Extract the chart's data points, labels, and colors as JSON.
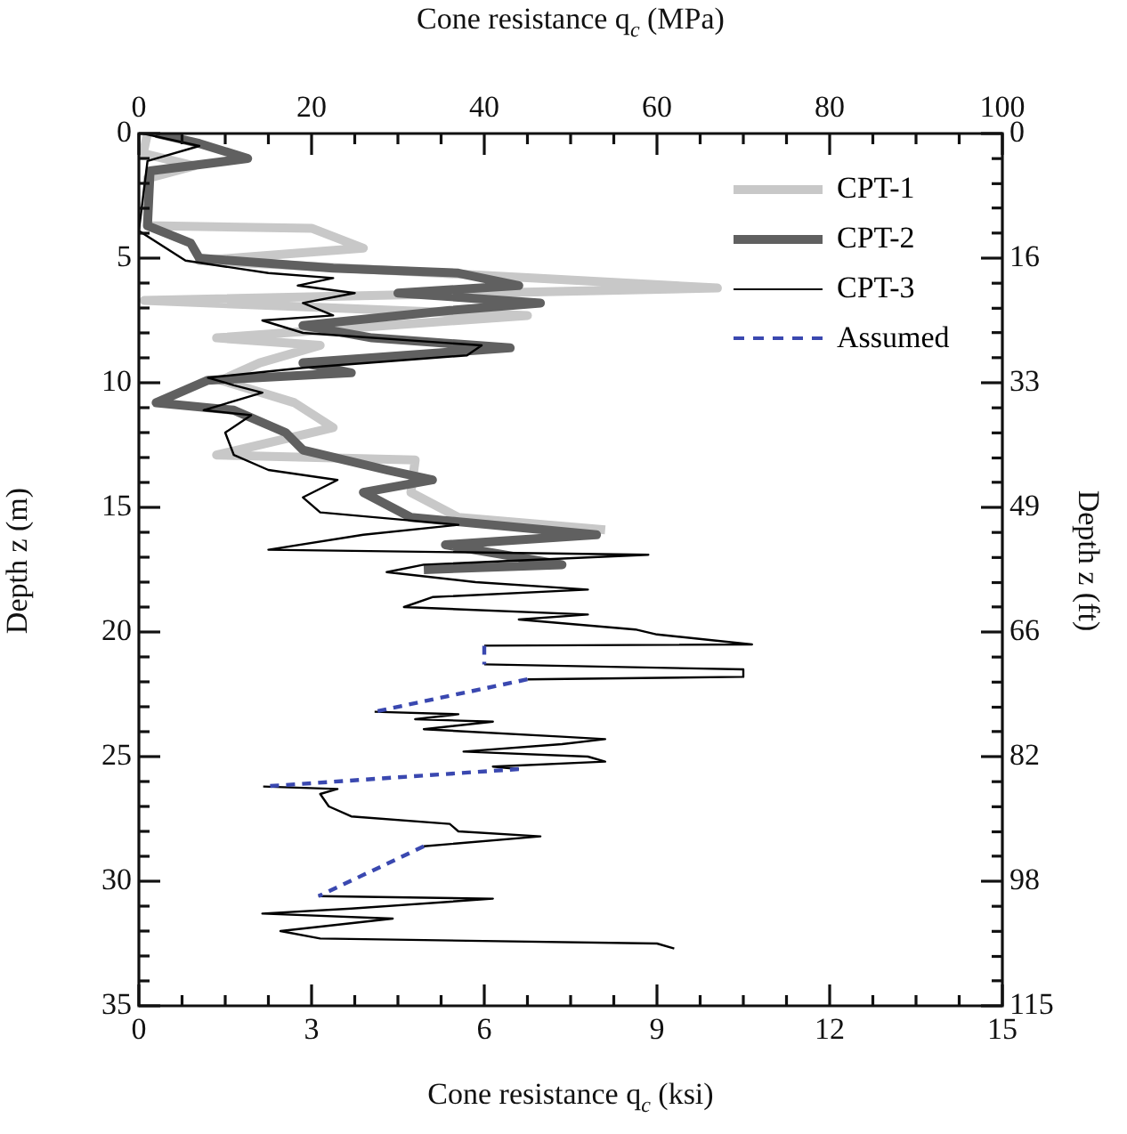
{
  "chart_data": {
    "type": "line",
    "x2label": "Cone resistance q$_{c}$ (MPa)",
    "xlabel": "Cone resistance q$_{c}$ (ksi)",
    "ylabel": "Depth z (m)",
    "y2label": "Depth z (ft)",
    "x2lim": [
      0,
      100
    ],
    "x2ticks": [
      0,
      {
        "value": 5,
        "label": null
      },
      {
        "value": 10,
        "label": null
      },
      {
        "value": 15,
        "label": null
      },
      20,
      {
        "value": 25,
        "label": null
      },
      {
        "value": 30,
        "label": null
      },
      {
        "value": 35,
        "label": null
      },
      40,
      {
        "value": 45,
        "label": null
      },
      {
        "value": 50,
        "label": null
      },
      {
        "value": 55,
        "label": null
      },
      60,
      {
        "value": 65,
        "label": null
      },
      {
        "value": 70,
        "label": null
      },
      {
        "value": 75,
        "label": null
      },
      80,
      {
        "value": 85,
        "label": null
      },
      {
        "value": 90,
        "label": null
      },
      {
        "value": 95,
        "label": null
      },
      100
    ],
    "xlim": [
      0,
      15
    ],
    "xticks": [
      0,
      {
        "value": 0.75,
        "label": null
      },
      {
        "value": 1.5,
        "label": null
      },
      {
        "value": 2.25,
        "label": null
      },
      3,
      {
        "value": 3.75,
        "label": null
      },
      {
        "value": 4.5,
        "label": null
      },
      {
        "value": 5.25,
        "label": null
      },
      6,
      {
        "value": 6.75,
        "label": null
      },
      {
        "value": 7.5,
        "label": null
      },
      {
        "value": 8.25,
        "label": null
      },
      9,
      {
        "value": 9.75,
        "label": null
      },
      {
        "value": 10.5,
        "label": null
      },
      {
        "value": 11.25,
        "label": null
      },
      12,
      {
        "value": 12.75,
        "label": null
      },
      {
        "value": 13.5,
        "label": null
      },
      {
        "value": 14.25,
        "label": null
      },
      15
    ],
    "ylim": [
      35,
      0
    ],
    "yticks": [
      0,
      {
        "value": 1,
        "label": null
      },
      {
        "value": 2,
        "label": null
      },
      {
        "value": 3,
        "label": null
      },
      {
        "value": 4,
        "label": null
      },
      5,
      {
        "value": 6,
        "label": null
      },
      {
        "value": 7,
        "label": null
      },
      {
        "value": 8,
        "label": null
      },
      {
        "value": 9,
        "label": null
      },
      10,
      {
        "value": 11,
        "label": null
      },
      {
        "value": 12,
        "label": null
      },
      {
        "value": 13,
        "label": null
      },
      {
        "value": 14,
        "label": null
      },
      15,
      {
        "value": 16,
        "label": null
      },
      {
        "value": 17,
        "label": null
      },
      {
        "value": 18,
        "label": null
      },
      {
        "value": 19,
        "label": null
      },
      20,
      {
        "value": 21,
        "label": null
      },
      {
        "value": 22,
        "label": null
      },
      {
        "value": 23,
        "label": null
      },
      {
        "value": 24,
        "label": null
      },
      25,
      {
        "value": 26,
        "label": null
      },
      {
        "value": 27,
        "label": null
      },
      {
        "value": 28,
        "label": null
      },
      {
        "value": 29,
        "label": null
      },
      30,
      {
        "value": 31,
        "label": null
      },
      {
        "value": 32,
        "label": null
      },
      {
        "value": 33,
        "label": null
      },
      {
        "value": 34,
        "label": null
      },
      35
    ],
    "y2lim": [
      114.8,
      0
    ],
    "y2ticks": [
      0,
      {
        "value": 3.3,
        "label": null
      },
      {
        "value": 6.6,
        "label": null
      },
      {
        "value": 9.8,
        "label": null
      },
      {
        "value": 13.1,
        "label": null
      },
      {
        "value": 16.4,
        "label": "16"
      },
      {
        "value": 19.7,
        "label": null
      },
      {
        "value": 23.0,
        "label": null
      },
      {
        "value": 26.2,
        "label": null
      },
      {
        "value": 29.5,
        "label": null
      },
      {
        "value": 32.8,
        "label": "33"
      },
      {
        "value": 36.1,
        "label": null
      },
      {
        "value": 39.4,
        "label": null
      },
      {
        "value": 42.7,
        "label": null
      },
      {
        "value": 45.9,
        "label": null
      },
      {
        "value": 49.2,
        "label": "49"
      },
      {
        "value": 52.5,
        "label": null
      },
      {
        "value": 55.8,
        "label": null
      },
      {
        "value": 59.1,
        "label": null
      },
      {
        "value": 62.3,
        "label": null
      },
      {
        "value": 65.6,
        "label": "66"
      },
      {
        "value": 68.9,
        "label": null
      },
      {
        "value": 72.2,
        "label": null
      },
      {
        "value": 75.5,
        "label": null
      },
      {
        "value": 78.7,
        "label": null
      },
      {
        "value": 82.0,
        "label": "82"
      },
      {
        "value": 85.3,
        "label": null
      },
      {
        "value": 88.6,
        "label": null
      },
      {
        "value": 91.9,
        "label": null
      },
      {
        "value": 95.1,
        "label": null
      },
      {
        "value": 98.4,
        "label": "98"
      },
      {
        "value": 101.7,
        "label": null
      },
      {
        "value": 105.0,
        "label": null
      },
      {
        "value": 108.3,
        "label": null
      },
      {
        "value": 111.5,
        "label": null
      },
      {
        "value": 114.8,
        "label": "115"
      }
    ],
    "grid": false,
    "legend": "top right",
    "marker": "none",
    "series": [
      {
        "name": "CPT-1",
        "color": "#c8c8c8",
        "axis": "x2",
        "line_style": "solid",
        "x": [
          1,
          0.5,
          6.4,
          1,
          1,
          20,
          26,
          7,
          46,
          67,
          0.6,
          45,
          9,
          21,
          14,
          9.5,
          18,
          22.5,
          9,
          32,
          31.5,
          37,
          54
        ],
        "values": [
          0,
          0.8,
          1.3,
          1.8,
          3.7,
          3.8,
          4.6,
          5.1,
          5.8,
          6.2,
          6.7,
          7.3,
          8.2,
          8.5,
          9.2,
          9.9,
          10.8,
          11.8,
          12.9,
          13.1,
          14.4,
          15.4,
          15.9
        ]
      },
      {
        "name": "CPT-2",
        "color": "#606060",
        "axis": "x2",
        "line_style": "solid",
        "x": [
          2,
          7,
          12.6,
          1.3,
          1,
          6,
          7,
          22.5,
          37,
          44,
          30,
          46.5,
          36,
          19,
          27,
          43,
          19,
          24.6,
          8,
          2,
          11,
          17,
          19,
          28.7,
          34,
          26,
          31.5,
          53,
          35.5,
          49,
          33
        ],
        "values": [
          0,
          0.4,
          1.0,
          1.5,
          3.7,
          4.4,
          5.0,
          5.4,
          5.6,
          6.1,
          6.4,
          6.8,
          7.1,
          7.7,
          8.2,
          8.6,
          9.2,
          9.6,
          9.9,
          10.8,
          11.1,
          12.0,
          12.7,
          13.5,
          13.9,
          14.4,
          15.4,
          16.1,
          16.5,
          17.3,
          17.5
        ]
      },
      {
        "name": "CPT-3",
        "color": "#000000",
        "axis": "x2",
        "line_style": "solid",
        "x": [
          0.5,
          7,
          1,
          0,
          5.4,
          15,
          22.5,
          18.4,
          25,
          19,
          22.5,
          14.3,
          19,
          39.7,
          38,
          19,
          8,
          11,
          14.3,
          7.5,
          13,
          10,
          11,
          15,
          23,
          19,
          21,
          37,
          26,
          15,
          59,
          33,
          28.7,
          39,
          52,
          34,
          30.7,
          52,
          44,
          57.5,
          60,
          71,
          40,
          null,
          40,
          70,
          70,
          45,
          null,
          27.3,
          37,
          32,
          41,
          33,
          49,
          54,
          49,
          37.6,
          52,
          54,
          41,
          44,
          null,
          14.4,
          23,
          21,
          22,
          24.6,
          36,
          37,
          46.5,
          33,
          null,
          20.8,
          41,
          24.6,
          14.3,
          29.4,
          16.4,
          21,
          60,
          62
        ],
        "values": [
          0,
          0.5,
          1.1,
          3.9,
          5.1,
          5.6,
          5.8,
          6.1,
          6.4,
          6.8,
          7.3,
          7.5,
          8.0,
          8.5,
          8.9,
          9.4,
          9.8,
          10.1,
          10.4,
          11.1,
          11.3,
          12.0,
          12.9,
          13.5,
          13.9,
          14.6,
          15.2,
          15.7,
          16.1,
          16.7,
          16.9,
          17.3,
          17.6,
          18.0,
          18.3,
          18.6,
          19.0,
          19.3,
          19.5,
          19.9,
          20.1,
          20.5,
          20.55,
          null,
          21.3,
          21.5,
          21.8,
          21.9,
          null,
          23.2,
          23.3,
          23.5,
          23.6,
          23.9,
          24.2,
          24.3,
          24.5,
          24.8,
          25.0,
          25.2,
          25.4,
          25.5,
          null,
          26.2,
          26.3,
          26.5,
          27.0,
          27.4,
          27.7,
          28.0,
          28.2,
          28.6,
          null,
          30.6,
          30.7,
          31.1,
          31.3,
          31.5,
          32.0,
          32.3,
          32.5,
          32.7
        ]
      },
      {
        "name": "Assumed",
        "color": "#3a48b0",
        "axis": "x2",
        "line_style": "dashed",
        "x": [
          40,
          40,
          null,
          45,
          27.3,
          null,
          44,
          14.4,
          null,
          33,
          20.8
        ],
        "values": [
          20.55,
          21.3,
          null,
          21.9,
          23.2,
          null,
          25.5,
          26.2,
          null,
          28.6,
          30.6
        ]
      }
    ]
  }
}
